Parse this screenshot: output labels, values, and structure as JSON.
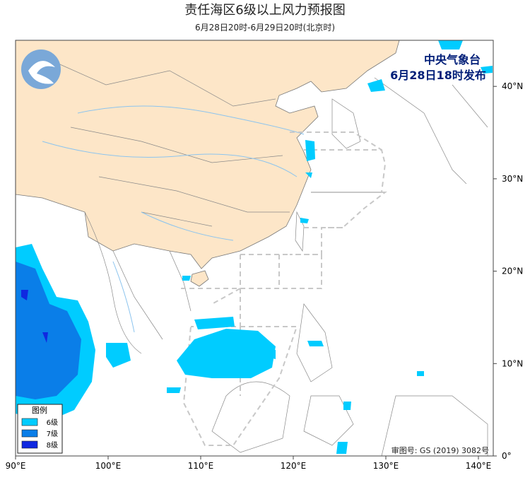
{
  "header": {
    "title": "责任海区6级以上风力预报图",
    "subtitle": "6月28日20时-6月29日20时(北京时)"
  },
  "agency": {
    "name": "中央气象台",
    "issued": "6月28日18时发布"
  },
  "legend": {
    "title": "图例",
    "items": [
      {
        "label": "6级",
        "color": "#00ccff"
      },
      {
        "label": "7级",
        "color": "#0a7ee8"
      },
      {
        "label": "8级",
        "color": "#1028e0"
      }
    ]
  },
  "axes": {
    "longitude_labels": [
      "90°E",
      "100°E",
      "110°E",
      "120°E",
      "130°E",
      "140°E"
    ],
    "latitude_labels": [
      "0°",
      "10°N",
      "20°N",
      "30°N",
      "40°N"
    ]
  },
  "footer": {
    "review_number": "审图号: GS (2019) 3082号"
  }
}
